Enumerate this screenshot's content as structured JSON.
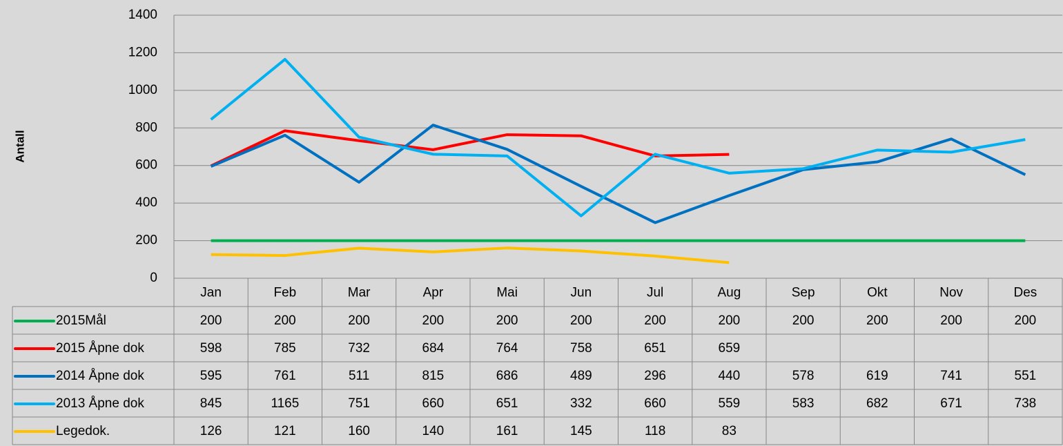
{
  "chart_data": {
    "type": "line",
    "y_label": "Antall",
    "categories": [
      "Jan",
      "Feb",
      "Mar",
      "Apr",
      "Mai",
      "Jun",
      "Jul",
      "Aug",
      "Sep",
      "Okt",
      "Nov",
      "Des"
    ],
    "series": [
      {
        "name": "2015Mål",
        "color": "#00b050",
        "values": [
          200,
          200,
          200,
          200,
          200,
          200,
          200,
          200,
          200,
          200,
          200,
          200
        ]
      },
      {
        "name": "2015 Åpne dok",
        "color": "#ff0000",
        "values": [
          598,
          785,
          732,
          684,
          764,
          758,
          651,
          659,
          null,
          null,
          null,
          null
        ]
      },
      {
        "name": "2014 Åpne dok",
        "color": "#0070c0",
        "values": [
          595,
          761,
          511,
          815,
          686,
          489,
          296,
          440,
          578,
          619,
          741,
          551
        ]
      },
      {
        "name": "2013 Åpne dok",
        "color": "#00b0f0",
        "values": [
          845,
          1165,
          751,
          660,
          651,
          332,
          660,
          559,
          583,
          682,
          671,
          738
        ]
      },
      {
        "name": "Legedok.",
        "color": "#ffc000",
        "values": [
          126,
          121,
          160,
          140,
          161,
          145,
          118,
          83,
          null,
          null,
          null,
          null
        ]
      }
    ],
    "ylim": [
      0,
      1400
    ],
    "yticks": [
      0,
      200,
      400,
      600,
      800,
      1000,
      1200,
      1400
    ],
    "grid": true
  }
}
